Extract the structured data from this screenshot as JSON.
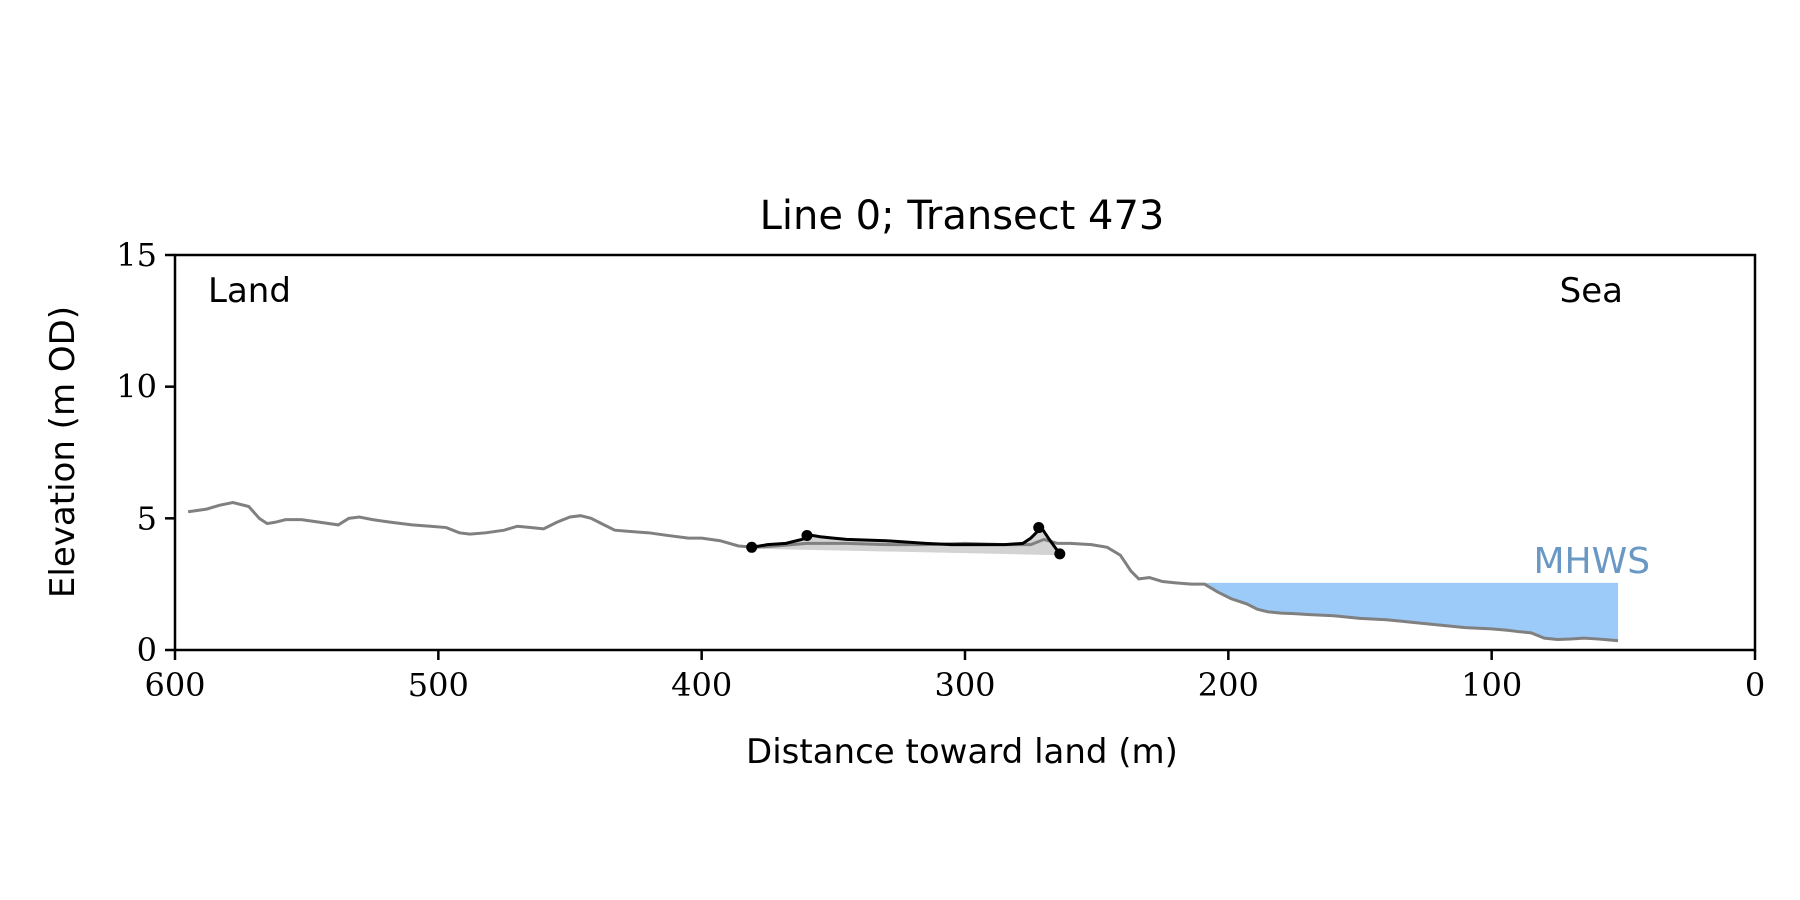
{
  "chart_data": {
    "type": "line",
    "title": "Line 0; Transect 473",
    "xlabel": "Distance toward land (m)",
    "ylabel": "Elevation (m OD)",
    "xlim": [
      600,
      0
    ],
    "ylim": [
      0,
      15
    ],
    "xticks": [
      600,
      500,
      400,
      300,
      200,
      100,
      0
    ],
    "yticks": [
      0,
      5,
      10,
      15
    ],
    "grid": false,
    "annotations": {
      "land_label": "Land",
      "sea_label": "Sea",
      "mhws_label": "MHWS",
      "mhws_elevation": 2.55
    },
    "colors": {
      "profile": "#808080",
      "feature": "#000000",
      "feature_fill": "#d3d3d3",
      "sea_fill": "#9dcbf9",
      "mhws_text": "#6a98c4"
    },
    "profile": {
      "x": [
        595,
        588,
        583,
        578,
        572,
        568,
        565,
        562,
        558,
        552,
        545,
        538,
        534,
        530,
        525,
        518,
        510,
        503,
        497,
        492,
        488,
        482,
        475,
        470,
        465,
        460,
        455,
        450,
        446,
        442,
        438,
        433,
        427,
        420,
        413,
        405,
        400,
        393,
        386,
        380,
        372,
        360,
        345,
        330,
        315,
        300,
        285,
        275,
        270,
        265,
        260,
        252,
        246,
        241,
        237,
        234,
        230,
        225,
        220,
        214,
        209,
        204,
        199,
        193,
        189,
        185,
        180,
        175,
        170,
        160,
        150,
        140,
        130,
        120,
        110,
        100,
        94,
        90,
        85,
        80,
        75,
        70,
        65,
        60,
        55,
        52
      ],
      "y": [
        5.25,
        5.35,
        5.5,
        5.6,
        5.45,
        5.0,
        4.8,
        4.85,
        4.95,
        4.95,
        4.85,
        4.75,
        5.0,
        5.05,
        4.95,
        4.85,
        4.75,
        4.7,
        4.65,
        4.45,
        4.4,
        4.45,
        4.55,
        4.7,
        4.65,
        4.6,
        4.85,
        5.05,
        5.1,
        5.0,
        4.8,
        4.55,
        4.5,
        4.45,
        4.35,
        4.25,
        4.25,
        4.15,
        3.95,
        3.9,
        3.95,
        4.05,
        4.05,
        4.0,
        4.0,
        4.05,
        4.0,
        4.0,
        4.2,
        4.05,
        4.05,
        4.0,
        3.9,
        3.6,
        3.0,
        2.7,
        2.75,
        2.6,
        2.55,
        2.5,
        2.5,
        2.2,
        1.95,
        1.75,
        1.55,
        1.45,
        1.4,
        1.38,
        1.35,
        1.3,
        1.2,
        1.15,
        1.05,
        0.95,
        0.85,
        0.8,
        0.75,
        0.7,
        0.65,
        0.45,
        0.4,
        0.42,
        0.45,
        0.42,
        0.38,
        0.35
      ]
    },
    "feature": {
      "x": [
        381,
        375,
        368,
        362,
        358,
        355,
        350,
        345,
        330,
        315,
        305,
        295,
        285,
        278,
        275,
        271,
        268,
        264
      ],
      "y": [
        3.9,
        4.0,
        4.05,
        4.2,
        4.35,
        4.3,
        4.25,
        4.2,
        4.15,
        4.05,
        4.0,
        4.0,
        4.0,
        4.05,
        4.25,
        4.65,
        4.2,
        3.65
      ],
      "base_y": [
        3.85,
        3.6
      ],
      "markers": {
        "x": [
          381,
          360,
          272,
          264
        ],
        "y": [
          3.9,
          4.35,
          4.65,
          3.65
        ]
      }
    }
  }
}
